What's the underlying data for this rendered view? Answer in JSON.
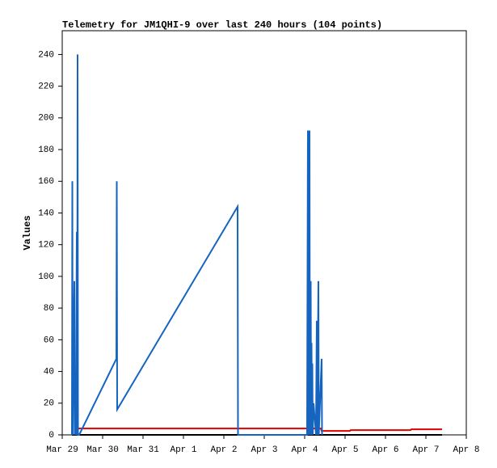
{
  "chart_data": {
    "type": "line",
    "title": "Telemetry for JM1QHI-9 over last 240 hours (104 points)",
    "y_label": "Values",
    "xlim": [
      0,
      10
    ],
    "xticks": [
      {
        "value": 0,
        "label": "Mar 29"
      },
      {
        "value": 1,
        "label": "Mar 30"
      },
      {
        "value": 2,
        "label": "Mar 31"
      },
      {
        "value": 3,
        "label": "Apr 1"
      },
      {
        "value": 4,
        "label": "Apr 2"
      },
      {
        "value": 5,
        "label": "Apr 3"
      },
      {
        "value": 6,
        "label": "Apr 4"
      },
      {
        "value": 7,
        "label": "Apr 5"
      },
      {
        "value": 8,
        "label": "Apr 6"
      },
      {
        "value": 9,
        "label": "Apr 7"
      },
      {
        "value": 10,
        "label": "Apr 8"
      }
    ],
    "ylim": [
      0,
      255
    ],
    "yticks": [
      0,
      20,
      40,
      60,
      80,
      100,
      120,
      140,
      160,
      180,
      200,
      220,
      240
    ],
    "series": [
      {
        "color": "#000000",
        "x": [
          0.24,
          9.4
        ],
        "values": [
          0,
          0
        ]
      },
      {
        "color": "#e00000",
        "x": [
          0.4,
          6.4,
          6.42,
          7.12,
          7.14,
          8.62,
          8.64,
          9.4
        ],
        "values": [
          4,
          4,
          2.5,
          2.5,
          3,
          3,
          3.5,
          3.5
        ]
      },
      {
        "color": "#1565c0",
        "x": [
          0.24,
          0.25,
          0.26,
          0.3,
          0.31,
          0.33,
          0.34,
          0.36,
          0.37,
          0.38,
          0.39,
          0.42,
          1.34,
          1.35,
          1.36,
          4.34,
          4.35,
          6.06,
          6.08,
          6.1,
          6.12,
          6.13,
          6.15,
          6.16,
          6.17,
          6.18,
          6.19,
          6.2,
          6.22,
          6.28,
          6.3,
          6.31,
          6.34,
          6.35,
          6.42,
          6.43
        ],
        "values": [
          0,
          160,
          0,
          97,
          0,
          40,
          0,
          128,
          0,
          240,
          0,
          0,
          48,
          160,
          16,
          144,
          0,
          0,
          192,
          0,
          192,
          0,
          97,
          0,
          58,
          0,
          45,
          0,
          20,
          0,
          72,
          0,
          97,
          0,
          48,
          0
        ]
      }
    ]
  }
}
